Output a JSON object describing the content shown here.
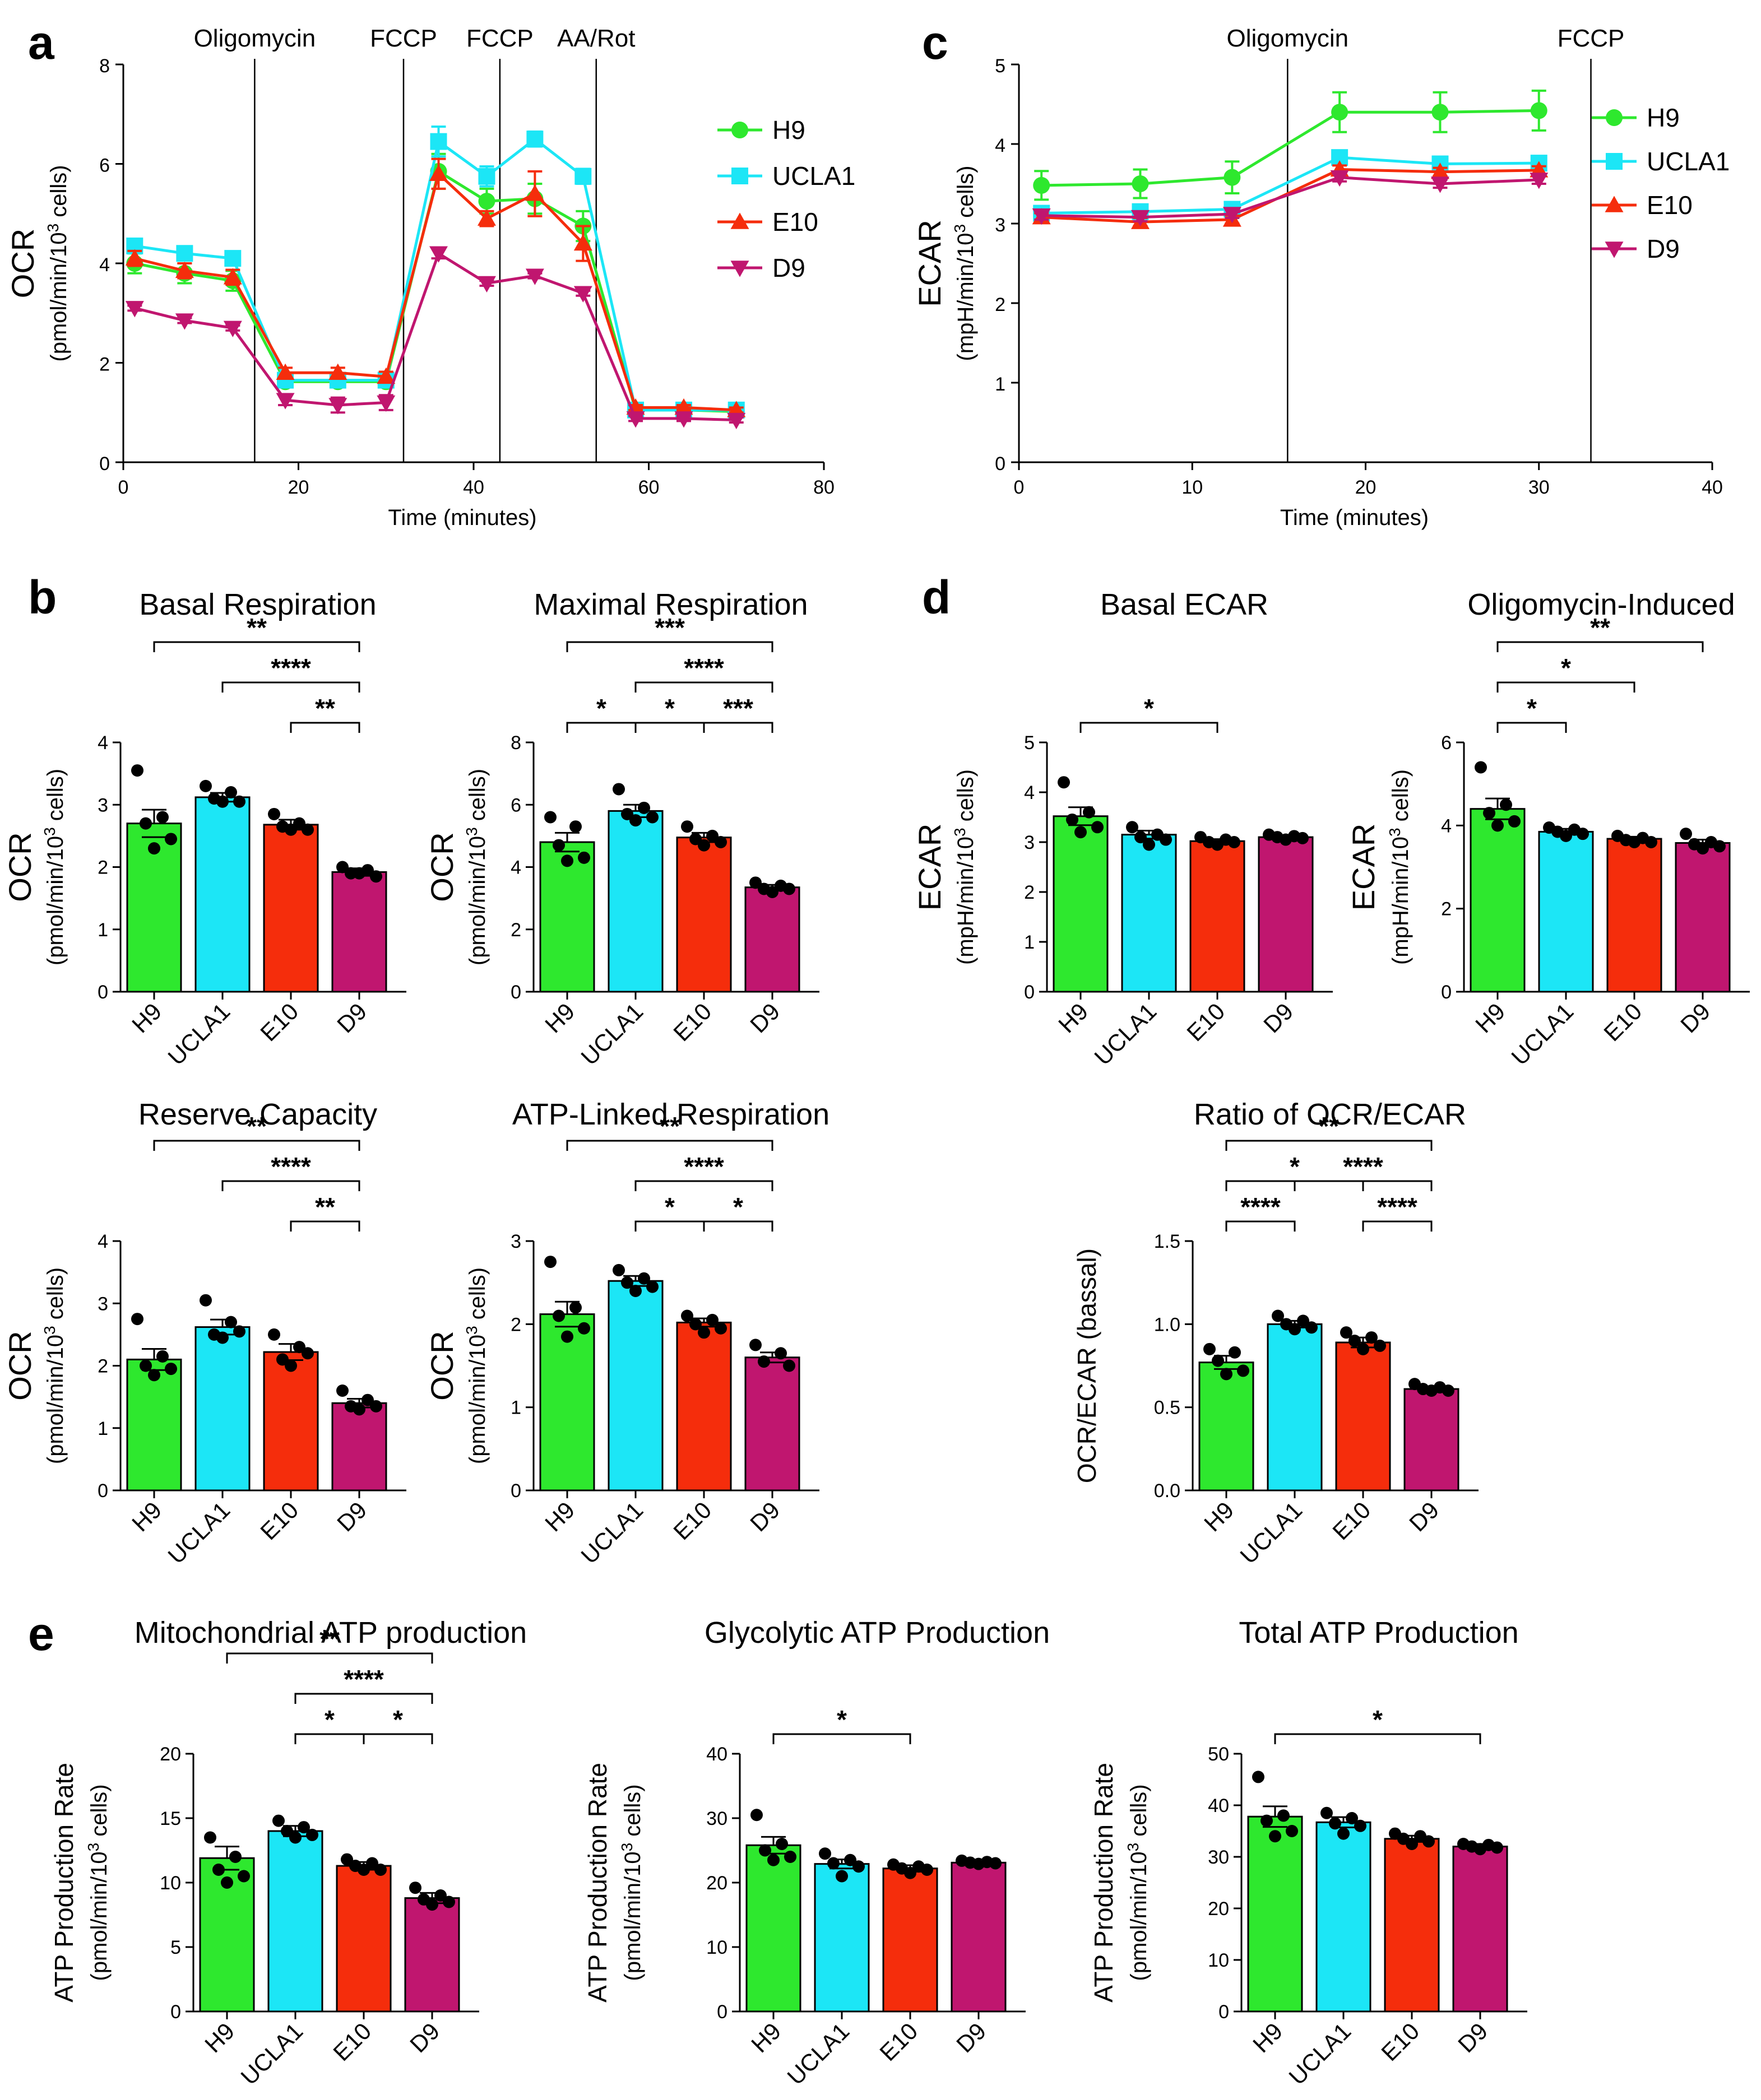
{
  "colors": {
    "H9": "#2ee82e",
    "UCLA1": "#1ce6f6",
    "E10": "#f52d0c",
    "D9": "#c0166f",
    "axis": "#000000"
  },
  "chart_data": [
    {
      "id": "a",
      "panel_label": "a",
      "type": "line",
      "title": "",
      "xlabel": "Time (minutes)",
      "ylabel": "OCR",
      "ylabel_unit": "(pmol/min/10^3 cells)",
      "xlim": [
        0,
        80
      ],
      "ylim": [
        0,
        8
      ],
      "xticks": [
        0,
        20,
        40,
        60,
        80
      ],
      "yticks": [
        0,
        2,
        4,
        6,
        8
      ],
      "x": [
        1.3,
        7,
        12.5,
        18.5,
        24.5,
        30,
        36,
        41.5,
        47,
        52.5,
        58.5,
        64,
        70
      ],
      "injections": [
        {
          "label": "Oligomycin",
          "x": 15
        },
        {
          "label": "FCCP",
          "x": 32
        },
        {
          "label": "FCCP",
          "x": 43
        },
        {
          "label": "AA/Rot",
          "x": 54
        }
      ],
      "series": [
        {
          "name": "H9",
          "marker": "circle",
          "values": [
            4.0,
            3.8,
            3.65,
            1.62,
            1.62,
            1.62,
            5.85,
            5.25,
            5.3,
            4.75,
            1.05,
            1.05,
            1.02
          ],
          "errors": [
            0.2,
            0.2,
            0.2,
            0.1,
            0.1,
            0.1,
            0.35,
            0.25,
            0.3,
            0.3,
            0.05,
            0.05,
            0.05
          ]
        },
        {
          "name": "UCLA1",
          "marker": "square",
          "values": [
            4.35,
            4.2,
            4.1,
            1.65,
            1.65,
            1.65,
            6.45,
            5.75,
            6.5,
            5.75,
            1.05,
            1.05,
            1.05
          ],
          "errors": [
            0.1,
            0.1,
            0.1,
            0.05,
            0.05,
            0.05,
            0.3,
            0.2,
            0.15,
            0.15,
            0.05,
            0.05,
            0.05
          ]
        },
        {
          "name": "E10",
          "marker": "triangle",
          "values": [
            4.1,
            3.85,
            3.72,
            1.8,
            1.8,
            1.72,
            5.8,
            4.9,
            5.4,
            4.4,
            1.1,
            1.1,
            1.05
          ],
          "errors": [
            0.15,
            0.15,
            0.15,
            0.1,
            0.1,
            0.1,
            0.3,
            0.15,
            0.45,
            0.35,
            0.05,
            0.05,
            0.05
          ]
        },
        {
          "name": "D9",
          "marker": "triangle-down",
          "values": [
            3.1,
            2.85,
            2.7,
            1.25,
            1.15,
            1.2,
            4.2,
            3.6,
            3.75,
            3.4,
            0.88,
            0.88,
            0.85
          ],
          "errors": [
            0.05,
            0.05,
            0.05,
            0.1,
            0.15,
            0.15,
            0.1,
            0.05,
            0.05,
            0.05,
            0.05,
            0.05,
            0.05
          ]
        }
      ]
    },
    {
      "id": "c",
      "panel_label": "c",
      "type": "line",
      "title": "",
      "xlabel": "Time (minutes)",
      "ylabel": "ECAR",
      "ylabel_unit": "(mpH/min/10^3 cells)",
      "xlim": [
        0,
        40
      ],
      "ylim": [
        0,
        5
      ],
      "xticks": [
        0,
        10,
        20,
        30,
        40
      ],
      "yticks": [
        0,
        1,
        2,
        3,
        4,
        5
      ],
      "x": [
        1.3,
        7,
        12.3,
        18.5,
        24.3,
        30
      ],
      "injections": [
        {
          "label": "Oligomycin",
          "x": 15.5
        },
        {
          "label": "FCCP",
          "x": 33
        }
      ],
      "series": [
        {
          "name": "H9",
          "marker": "circle",
          "values": [
            3.48,
            3.5,
            3.58,
            4.4,
            4.4,
            4.42
          ],
          "errors": [
            0.18,
            0.18,
            0.2,
            0.25,
            0.25,
            0.25
          ]
        },
        {
          "name": "UCLA1",
          "marker": "square",
          "values": [
            3.13,
            3.15,
            3.18,
            3.83,
            3.75,
            3.76
          ],
          "errors": [
            0.05,
            0.05,
            0.05,
            0.05,
            0.05,
            0.05
          ]
        },
        {
          "name": "E10",
          "marker": "triangle",
          "values": [
            3.08,
            3.02,
            3.05,
            3.68,
            3.65,
            3.67
          ],
          "errors": [
            0.05,
            0.05,
            0.05,
            0.05,
            0.05,
            0.05
          ]
        },
        {
          "name": "D9",
          "marker": "triangle-down",
          "values": [
            3.1,
            3.08,
            3.12,
            3.58,
            3.5,
            3.55
          ],
          "errors": [
            0.05,
            0.05,
            0.05,
            0.05,
            0.05,
            0.05
          ]
        }
      ]
    },
    {
      "id": "b1",
      "panel_label": "b",
      "type": "bar",
      "title": "Basal Respiration",
      "ylabel": "OCR",
      "ylabel_unit": "(pmol/min/10^3 cells)",
      "categories": [
        "H9",
        "UCLA1",
        "E10",
        "D9"
      ],
      "ylim": [
        0,
        4
      ],
      "yticks": [
        "0",
        "1",
        "2",
        "3",
        "4"
      ],
      "values": [
        2.7,
        3.12,
        2.68,
        1.92
      ],
      "errors": [
        0.22,
        0.07,
        0.08,
        0.06
      ],
      "points": [
        [
          3.55,
          2.8,
          2.7,
          2.45,
          2.3
        ],
        [
          3.3,
          3.2,
          3.1,
          3.05,
          3.05
        ],
        [
          2.85,
          2.7,
          2.65,
          2.6,
          2.6
        ],
        [
          2.0,
          1.95,
          1.9,
          1.85,
          1.9
        ]
      ],
      "significance": [
        {
          "from": 0,
          "to": 3,
          "label": "**"
        },
        {
          "from": 1,
          "to": 3,
          "label": "****"
        },
        {
          "from": 2,
          "to": 3,
          "label": "**"
        }
      ]
    },
    {
      "id": "b2",
      "panel_label": "",
      "type": "bar",
      "title": "Maximal Respiration",
      "ylabel": "OCR",
      "ylabel_unit": "(pmol/min/10^3 cells)",
      "categories": [
        "H9",
        "UCLA1",
        "E10",
        "D9"
      ],
      "ylim": [
        0,
        8
      ],
      "yticks": [
        "0",
        "2",
        "4",
        "6",
        "8"
      ],
      "values": [
        4.8,
        5.8,
        4.95,
        3.35
      ],
      "errors": [
        0.3,
        0.2,
        0.15,
        0.08
      ],
      "points": [
        [
          5.6,
          5.3,
          4.7,
          4.3,
          4.2
        ],
        [
          6.5,
          5.9,
          5.7,
          5.6,
          5.5
        ],
        [
          5.3,
          5.0,
          4.9,
          4.8,
          4.7
        ],
        [
          3.5,
          3.4,
          3.3,
          3.3,
          3.2
        ]
      ],
      "significance": [
        {
          "from": 0,
          "to": 3,
          "label": "***"
        },
        {
          "from": 1,
          "to": 3,
          "label": "****"
        },
        {
          "from": 0,
          "to": 1,
          "label": "*"
        },
        {
          "from": 1,
          "to": 2,
          "label": "*"
        },
        {
          "from": 2,
          "to": 3,
          "label": "***"
        }
      ]
    },
    {
      "id": "b3",
      "panel_label": "",
      "type": "bar",
      "title": "Reserve Capacity",
      "ylabel": "OCR",
      "ylabel_unit": "(pmol/min/10^3 cells)",
      "categories": [
        "H9",
        "UCLA1",
        "E10",
        "D9"
      ],
      "ylim": [
        0,
        4
      ],
      "yticks": [
        "0",
        "1",
        "2",
        "3",
        "4"
      ],
      "values": [
        2.1,
        2.62,
        2.22,
        1.4
      ],
      "errors": [
        0.17,
        0.12,
        0.13,
        0.07
      ],
      "points": [
        [
          2.75,
          2.15,
          2.0,
          1.95,
          1.85
        ],
        [
          3.05,
          2.7,
          2.5,
          2.55,
          2.45
        ],
        [
          2.5,
          2.3,
          2.1,
          2.2,
          2.0
        ],
        [
          1.6,
          1.45,
          1.35,
          1.35,
          1.3
        ]
      ],
      "significance": [
        {
          "from": 0,
          "to": 3,
          "label": "**"
        },
        {
          "from": 1,
          "to": 3,
          "label": "****"
        },
        {
          "from": 2,
          "to": 3,
          "label": "**"
        }
      ]
    },
    {
      "id": "b4",
      "panel_label": "",
      "type": "bar",
      "title": "ATP-Linked Respiration",
      "ylabel": "OCR",
      "ylabel_unit": "(pmol/min/10^3 cells)",
      "categories": [
        "H9",
        "UCLA1",
        "E10",
        "D9"
      ],
      "ylim": [
        0,
        3
      ],
      "yticks": [
        "0",
        "1",
        "2",
        "3"
      ],
      "values": [
        2.12,
        2.52,
        2.02,
        1.6
      ],
      "errors": [
        0.15,
        0.06,
        0.05,
        0.06
      ],
      "points": [
        [
          2.75,
          2.2,
          2.1,
          1.95,
          1.85
        ],
        [
          2.65,
          2.55,
          2.5,
          2.45,
          2.4
        ],
        [
          2.1,
          2.05,
          2.0,
          1.95,
          1.9
        ],
        [
          1.75,
          1.65,
          1.55,
          1.5
        ]
      ],
      "significance": [
        {
          "from": 0,
          "to": 3,
          "label": "**"
        },
        {
          "from": 1,
          "to": 3,
          "label": "****"
        },
        {
          "from": 1,
          "to": 2,
          "label": "*"
        },
        {
          "from": 2,
          "to": 3,
          "label": "*"
        }
      ]
    },
    {
      "id": "d1",
      "panel_label": "d",
      "type": "bar",
      "title": "Basal ECAR",
      "ylabel": "ECAR",
      "ylabel_unit": "(mpH/min/10^3 cells)",
      "categories": [
        "H9",
        "UCLA1",
        "E10",
        "D9"
      ],
      "ylim": [
        0,
        5
      ],
      "yticks": [
        "0",
        "1",
        "2",
        "3",
        "4",
        "5"
      ],
      "values": [
        3.52,
        3.15,
        3.02,
        3.1
      ],
      "errors": [
        0.18,
        0.08,
        0.04,
        0.03
      ],
      "points": [
        [
          4.2,
          3.6,
          3.45,
          3.3,
          3.2
        ],
        [
          3.3,
          3.15,
          3.1,
          3.05,
          2.95
        ],
        [
          3.1,
          3.05,
          3.0,
          3.0,
          2.95
        ],
        [
          3.15,
          3.12,
          3.1,
          3.08,
          3.05
        ]
      ],
      "significance": [
        {
          "from": 0,
          "to": 2,
          "label": "*"
        }
      ]
    },
    {
      "id": "d2",
      "panel_label": "",
      "type": "bar",
      "title": "Oligomycin-Induced",
      "ylabel": "ECAR",
      "ylabel_unit": "(mpH/min/10^3 cells)",
      "categories": [
        "H9",
        "UCLA1",
        "E10",
        "D9"
      ],
      "ylim": [
        0,
        6
      ],
      "yticks": [
        "0",
        "2",
        "4",
        "6"
      ],
      "values": [
        4.4,
        3.85,
        3.68,
        3.58
      ],
      "errors": [
        0.25,
        0.07,
        0.05,
        0.08
      ],
      "points": [
        [
          5.4,
          4.5,
          4.3,
          4.1,
          4.0
        ],
        [
          3.95,
          3.9,
          3.85,
          3.8,
          3.75
        ],
        [
          3.75,
          3.7,
          3.65,
          3.6,
          3.6
        ],
        [
          3.8,
          3.6,
          3.55,
          3.5,
          3.45
        ]
      ],
      "significance": [
        {
          "from": 0,
          "to": 3,
          "label": "**"
        },
        {
          "from": 0,
          "to": 2,
          "label": "*"
        },
        {
          "from": 0,
          "to": 1,
          "label": "*"
        }
      ]
    },
    {
      "id": "d3",
      "panel_label": "",
      "type": "bar",
      "title": "Ratio of OCR/ECAR",
      "ylabel": "OCR/ECAR (bassal)",
      "ylabel_unit": "",
      "categories": [
        "H9",
        "UCLA1",
        "E10",
        "D9"
      ],
      "ylim": [
        0,
        1.5
      ],
      "yticks": [
        "0.0",
        "0.5",
        "1.0",
        "1.5"
      ],
      "values": [
        0.77,
        1.0,
        0.89,
        0.61
      ],
      "errors": [
        0.04,
        0.02,
        0.03,
        0.015
      ],
      "points": [
        [
          0.85,
          0.83,
          0.78,
          0.72,
          0.7
        ],
        [
          1.05,
          1.02,
          1.0,
          0.98,
          0.97
        ],
        [
          0.95,
          0.92,
          0.9,
          0.87,
          0.85
        ],
        [
          0.64,
          0.62,
          0.61,
          0.6,
          0.6
        ]
      ],
      "significance": [
        {
          "from": 0,
          "to": 3,
          "label": "**"
        },
        {
          "from": 1,
          "to": 3,
          "label": "****"
        },
        {
          "from": 0,
          "to": 2,
          "label": "*"
        },
        {
          "from": 0,
          "to": 1,
          "label": "****"
        },
        {
          "from": 2,
          "to": 3,
          "label": "****"
        }
      ]
    },
    {
      "id": "e1",
      "panel_label": "e",
      "type": "bar",
      "title": "Mitochondrial ATP production",
      "ylabel": "ATP Production Rate",
      "ylabel_unit": "(pmol/min/10^3 cells)",
      "categories": [
        "H9",
        "UCLA1",
        "E10",
        "D9"
      ],
      "ylim": [
        0,
        20
      ],
      "yticks": [
        "0",
        "5",
        "10",
        "15",
        "20"
      ],
      "values": [
        11.9,
        14.0,
        11.3,
        8.8
      ],
      "errors": [
        0.9,
        0.4,
        0.3,
        0.4
      ],
      "points": [
        [
          13.5,
          12.0,
          11.0,
          10.5,
          10.0
        ],
        [
          14.8,
          14.3,
          14.0,
          13.7,
          13.5
        ],
        [
          11.8,
          11.5,
          11.3,
          11.0,
          11.0
        ],
        [
          9.6,
          9.0,
          8.7,
          8.5,
          8.3
        ]
      ],
      "significance": [
        {
          "from": 0,
          "to": 3,
          "label": "**"
        },
        {
          "from": 1,
          "to": 3,
          "label": "****"
        },
        {
          "from": 1,
          "to": 2,
          "label": "*"
        },
        {
          "from": 2,
          "to": 3,
          "label": "*"
        }
      ]
    },
    {
      "id": "e2",
      "panel_label": "",
      "type": "bar",
      "title": "Glycolytic ATP  Production",
      "ylabel": "ATP Production Rate",
      "ylabel_unit": "(pmol/min/10^3 cells)",
      "categories": [
        "H9",
        "UCLA1",
        "E10",
        "D9"
      ],
      "ylim": [
        0,
        40
      ],
      "yticks": [
        "0",
        "10",
        "20",
        "30",
        "40"
      ],
      "values": [
        25.8,
        22.9,
        22.2,
        23.1
      ],
      "errors": [
        1.3,
        0.7,
        0.5,
        0.3
      ],
      "points": [
        [
          30.5,
          26.0,
          25.0,
          24.0,
          23.5
        ],
        [
          24.5,
          23.5,
          23.0,
          22.5,
          21.0
        ],
        [
          22.8,
          22.5,
          22.2,
          22.0,
          21.5
        ],
        [
          23.4,
          23.2,
          23.1,
          23.0,
          22.9
        ]
      ],
      "significance": [
        {
          "from": 0,
          "to": 2,
          "label": "*"
        }
      ]
    },
    {
      "id": "e3",
      "panel_label": "",
      "type": "bar",
      "title": "Total ATP Production",
      "ylabel": "ATP Production Rate",
      "ylabel_unit": "(pmol/min/10^3 cells)",
      "categories": [
        "H9",
        "UCLA1",
        "E10",
        "D9"
      ],
      "ylim": [
        0,
        50
      ],
      "yticks": [
        "0",
        "10",
        "20",
        "30",
        "40",
        "50"
      ],
      "values": [
        37.8,
        36.7,
        33.5,
        32.0
      ],
      "errors": [
        2.0,
        1.0,
        0.6,
        0.5
      ],
      "points": [
        [
          45.5,
          38.0,
          37.0,
          35.0,
          34.0
        ],
        [
          38.5,
          37.5,
          36.5,
          36.0,
          34.5
        ],
        [
          34.5,
          34.0,
          33.5,
          33.0,
          32.5
        ],
        [
          32.5,
          32.3,
          32.0,
          31.8,
          31.5
        ]
      ],
      "significance": [
        {
          "from": 0,
          "to": 3,
          "label": "*"
        }
      ]
    }
  ]
}
